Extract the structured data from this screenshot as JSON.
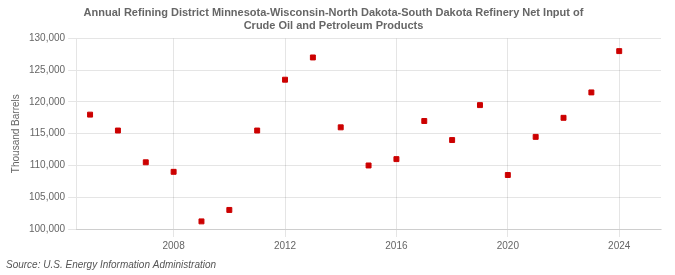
{
  "chart_data": {
    "type": "scatter",
    "title": "Annual Refining District Minnesota-Wisconsin-North Dakota-South Dakota Refinery Net Input of\nCrude Oil and Petroleum Products",
    "ylabel": "Thousand Barrels",
    "source": "Source: U.S. Energy Information Administration",
    "x": [
      2005,
      2006,
      2007,
      2008,
      2009,
      2010,
      2011,
      2012,
      2013,
      2014,
      2015,
      2016,
      2017,
      2018,
      2019,
      2020,
      2021,
      2022,
      2023,
      2024
    ],
    "values": [
      118000,
      115500,
      110500,
      109000,
      101200,
      103000,
      115500,
      123500,
      127000,
      116000,
      110000,
      111000,
      117000,
      114000,
      119500,
      108500,
      114500,
      117500,
      121500,
      128000
    ],
    "color": "#cc0000",
    "marker": "square",
    "xlim": [
      2004.5,
      2025.5
    ],
    "xticks": [
      2008,
      2012,
      2016,
      2020,
      2024
    ],
    "ylim": [
      100000,
      130000
    ],
    "yticks": [
      {
        "value": 100000,
        "label": "100,000"
      },
      {
        "value": 105000,
        "label": "105,000"
      },
      {
        "value": 110000,
        "label": "110,000"
      },
      {
        "value": 115000,
        "label": "115,000"
      },
      {
        "value": 120000,
        "label": "120,000"
      },
      {
        "value": 125000,
        "label": "125,000"
      },
      {
        "value": 130000,
        "label": "130,000"
      }
    ],
    "grid": true
  }
}
